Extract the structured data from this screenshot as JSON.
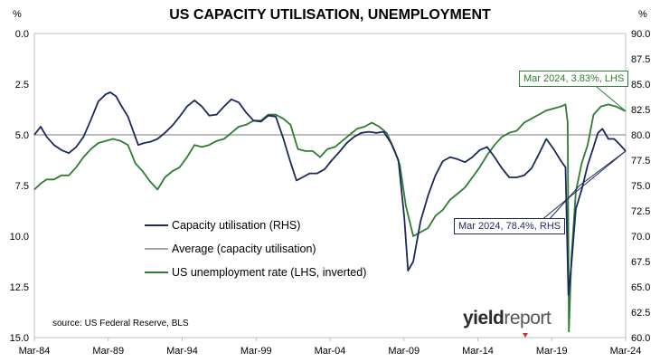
{
  "chart_data": {
    "type": "line",
    "title": "US CAPACITY UTILISATION, UNEMPLOYMENT",
    "left_axis": {
      "unit": "%",
      "range": [
        15.0,
        0.0
      ],
      "inverted": true,
      "ticks": [
        "0.0",
        "2.5",
        "5.0",
        "7.5",
        "10.0",
        "12.5",
        "15.0"
      ]
    },
    "right_axis": {
      "unit": "%",
      "range": [
        60.0,
        90.0
      ],
      "ticks": [
        "60.0",
        "62.5",
        "65.0",
        "67.5",
        "70.0",
        "72.5",
        "75.0",
        "77.5",
        "80.0",
        "82.5",
        "85.0",
        "87.5",
        "90.0"
      ]
    },
    "x_axis": {
      "range": [
        1984.17,
        2024.17
      ],
      "ticks": [
        "Mar-84",
        "Mar-89",
        "Mar-94",
        "Mar-99",
        "Mar-04",
        "Mar-09",
        "Mar-14",
        "Mar-19",
        "Mar-24"
      ]
    },
    "grid": false,
    "series": [
      {
        "name": "Capacity utilisation (RHS)",
        "axis": "right",
        "color": "#1b2a5c",
        "x": [
          1984.17,
          1984.6,
          1985.0,
          1985.5,
          1986.0,
          1986.5,
          1987.0,
          1987.5,
          1988.0,
          1988.5,
          1989.0,
          1989.3,
          1989.7,
          1990.0,
          1990.5,
          1990.8,
          1991.2,
          1991.6,
          1992.0,
          1992.5,
          1993.0,
          1993.5,
          1994.0,
          1994.5,
          1995.0,
          1995.5,
          1996.0,
          1996.5,
          1997.0,
          1997.5,
          1998.0,
          1998.5,
          1999.0,
          1999.5,
          2000.0,
          2000.5,
          2001.0,
          2001.5,
          2001.9,
          2002.3,
          2002.8,
          2003.3,
          2003.8,
          2004.3,
          2004.8,
          2005.3,
          2005.8,
          2006.3,
          2006.8,
          2007.3,
          2007.8,
          2008.3,
          2008.8,
          2009.2,
          2009.45,
          2009.8,
          2010.3,
          2010.8,
          2011.3,
          2011.8,
          2012.3,
          2012.8,
          2013.3,
          2013.8,
          2014.3,
          2014.8,
          2015.3,
          2015.8,
          2016.3,
          2016.8,
          2017.3,
          2017.8,
          2018.3,
          2018.8,
          2019.3,
          2019.8,
          2020.1,
          2020.3,
          2020.5,
          2020.8,
          2021.2,
          2021.6,
          2022.0,
          2022.3,
          2022.6,
          2023.0,
          2023.4,
          2023.8,
          2024.17
        ],
        "values": [
          80.0,
          80.8,
          79.8,
          79.0,
          78.5,
          78.2,
          78.8,
          79.8,
          81.5,
          83.3,
          84.0,
          84.2,
          83.8,
          83.0,
          81.8,
          80.6,
          79.0,
          79.2,
          79.3,
          79.6,
          80.2,
          80.9,
          81.8,
          82.8,
          83.4,
          82.8,
          81.9,
          82.0,
          82.8,
          83.5,
          83.2,
          82.2,
          81.4,
          81.3,
          81.9,
          81.8,
          79.7,
          77.3,
          75.5,
          75.8,
          76.2,
          76.2,
          76.6,
          77.5,
          78.3,
          79.2,
          79.8,
          80.2,
          80.3,
          80.2,
          80.3,
          79.2,
          77.5,
          71.8,
          66.6,
          67.5,
          71.5,
          74.0,
          76.0,
          77.4,
          77.8,
          77.6,
          77.3,
          77.8,
          78.5,
          78.8,
          77.8,
          76.7,
          75.8,
          75.8,
          76.0,
          76.7,
          78.1,
          79.6,
          78.6,
          77.4,
          76.8,
          64.2,
          67.2,
          72.7,
          74.6,
          77.0,
          78.8,
          80.2,
          80.6,
          79.6,
          79.6,
          79.0,
          78.4
        ]
      },
      {
        "name": "Average (capacity utilisation)",
        "axis": "right",
        "color": "#a6a6a6",
        "x": [
          1984.17,
          2024.17
        ],
        "values": [
          80.0,
          80.0
        ]
      },
      {
        "name": "US unemployment rate (LHS, inverted)",
        "axis": "left",
        "color": "#2e7d32",
        "x": [
          1984.17,
          1984.6,
          1985.0,
          1985.5,
          1986.0,
          1986.5,
          1987.0,
          1987.5,
          1988.0,
          1988.5,
          1989.0,
          1989.5,
          1990.0,
          1990.5,
          1991.0,
          1991.5,
          1992.0,
          1992.5,
          1993.0,
          1993.5,
          1994.0,
          1994.5,
          1995.0,
          1995.5,
          1996.0,
          1996.5,
          1997.0,
          1997.5,
          1998.0,
          1998.5,
          1999.0,
          1999.5,
          2000.0,
          2000.5,
          2001.0,
          2001.5,
          2002.0,
          2002.5,
          2003.0,
          2003.5,
          2004.0,
          2004.5,
          2005.0,
          2005.5,
          2006.0,
          2006.5,
          2007.0,
          2007.5,
          2008.0,
          2008.5,
          2008.9,
          2009.3,
          2009.8,
          2010.3,
          2010.8,
          2011.3,
          2011.8,
          2012.3,
          2012.8,
          2013.3,
          2013.8,
          2014.3,
          2014.8,
          2015.3,
          2015.8,
          2016.3,
          2016.8,
          2017.3,
          2017.8,
          2018.3,
          2018.8,
          2019.3,
          2019.8,
          2020.1,
          2020.25,
          2020.33,
          2020.5,
          2020.8,
          2021.2,
          2021.6,
          2022.0,
          2022.5,
          2023.0,
          2023.5,
          2024.17
        ],
        "values": [
          7.7,
          7.4,
          7.2,
          7.2,
          7.0,
          7.0,
          6.6,
          6.1,
          5.7,
          5.4,
          5.3,
          5.2,
          5.3,
          5.5,
          6.4,
          6.8,
          7.3,
          7.7,
          7.1,
          6.8,
          6.6,
          6.1,
          5.5,
          5.6,
          5.5,
          5.3,
          5.2,
          4.9,
          4.6,
          4.5,
          4.3,
          4.3,
          4.0,
          4.0,
          4.2,
          4.5,
          5.7,
          5.8,
          5.8,
          6.1,
          5.7,
          5.6,
          5.3,
          5.0,
          4.7,
          4.6,
          4.4,
          4.6,
          4.9,
          5.7,
          6.5,
          8.5,
          10.0,
          9.8,
          9.6,
          9.0,
          8.7,
          8.2,
          7.9,
          7.6,
          7.1,
          6.6,
          6.0,
          5.5,
          5.1,
          4.9,
          4.8,
          4.4,
          4.2,
          4.0,
          3.8,
          3.7,
          3.6,
          3.5,
          4.4,
          14.7,
          11.1,
          7.8,
          6.4,
          5.5,
          4.0,
          3.6,
          3.5,
          3.6,
          3.83
        ]
      }
    ],
    "annotations": [
      {
        "text": "Mar 2024, 3.83%, LHS",
        "series": "US unemployment rate (LHS, inverted)",
        "x": 2024.17,
        "value": 3.83
      },
      {
        "text": "Mar 2024, 78.4%, RHS",
        "series": "Capacity utilisation (RHS)",
        "x": 2024.17,
        "value": 78.4
      }
    ],
    "source": "source: US Federal Reserve, BLS",
    "legend_position": "center-left"
  },
  "branding": {
    "logo_bold": "yield",
    "logo_light": "report"
  }
}
